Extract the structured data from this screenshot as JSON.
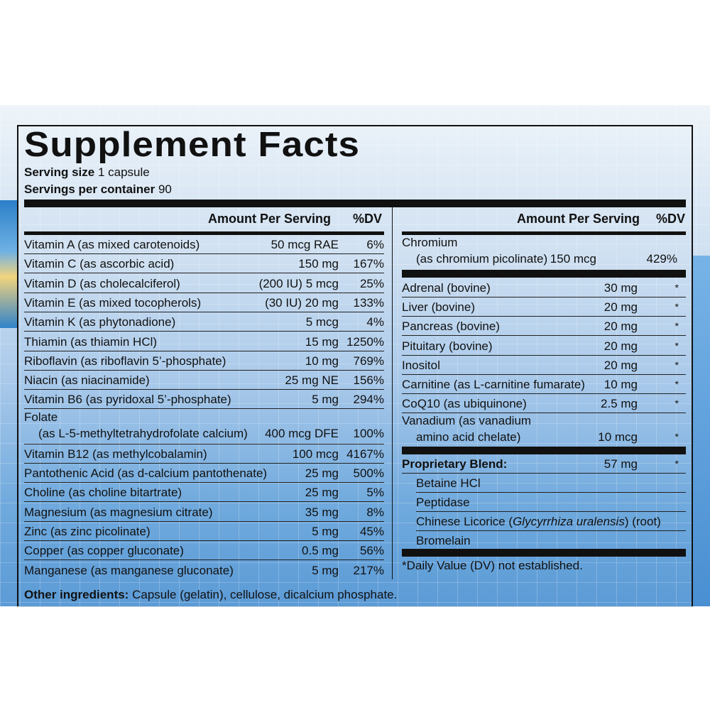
{
  "title": "Supplement Facts",
  "serving_size_label": "Serving size",
  "serving_size_value": "1 capsule",
  "servings_label": "Servings per container",
  "servings_value": "90",
  "left_header": {
    "amount": "Amount Per Serving",
    "dv": "%DV"
  },
  "right_header": {
    "amount": "Amount Per Serving",
    "dv": "%DV"
  },
  "left_rows": [
    {
      "name": "Vitamin A (as mixed carotenoids)",
      "amount": "50 mcg RAE",
      "dv": "6%"
    },
    {
      "name": "Vitamin C (as ascorbic acid)",
      "amount": "150 mg",
      "dv": "167%"
    },
    {
      "name": "Vitamin D (as cholecalciferol)",
      "amount": "(200 IU) 5 mcg",
      "dv": "25%"
    },
    {
      "name": "Vitamin E (as mixed tocopherols)",
      "amount": "(30 IU) 20 mg",
      "dv": "133%"
    },
    {
      "name": "Vitamin K (as phytonadione)",
      "amount": "5 mcg",
      "dv": "4%"
    },
    {
      "name": "Thiamin (as thiamin HCl)",
      "amount": "15 mg",
      "dv": "1250%"
    },
    {
      "name": "Riboflavin (as riboflavin 5’-phosphate)",
      "amount": "10 mg",
      "dv": "769%"
    },
    {
      "name": "Niacin (as niacinamide)",
      "amount": "25 mg NE",
      "dv": "156%"
    },
    {
      "name": "Vitamin B6 (as pyridoxal 5’-phosphate)",
      "amount": "5 mg",
      "dv": "294%"
    }
  ],
  "folate": {
    "name": "Folate",
    "sub": "(as L-5-methyltetrahydrofolate calcium)",
    "amount": "400 mcg DFE",
    "dv": "100%"
  },
  "left_rows2": [
    {
      "name": "Vitamin B12 (as methylcobalamin)",
      "amount": "100 mcg",
      "dv": "4167%"
    },
    {
      "name": "Pantothenic Acid (as d-calcium pantothenate)",
      "amount": "25 mg",
      "dv": "500%"
    },
    {
      "name": "Choline (as choline bitartrate)",
      "amount": "25 mg",
      "dv": "5%"
    },
    {
      "name": "Magnesium (as magnesium citrate)",
      "amount": "35 mg",
      "dv": "8%"
    },
    {
      "name": "Zinc (as zinc picolinate)",
      "amount": "5 mg",
      "dv": "45%"
    },
    {
      "name": "Copper (as copper gluconate)",
      "amount": "0.5 mg",
      "dv": "56%"
    },
    {
      "name": "Manganese (as manganese gluconate)",
      "amount": "5 mg",
      "dv": "217%"
    }
  ],
  "chromium": {
    "name": "Chromium",
    "sub": "(as chromium picolinate)",
    "amount": "150 mcg",
    "dv": "429%"
  },
  "right_rows": [
    {
      "name": "Adrenal (bovine)",
      "amount": "30 mg",
      "dv": "*"
    },
    {
      "name": "Liver (bovine)",
      "amount": "20 mg",
      "dv": "*"
    },
    {
      "name": "Pancreas (bovine)",
      "amount": "20 mg",
      "dv": "*"
    },
    {
      "name": "Pituitary (bovine)",
      "amount": "20 mg",
      "dv": "*"
    },
    {
      "name": "Inositol",
      "amount": "20 mg",
      "dv": "*"
    },
    {
      "name": "Carnitine (as L-carnitine fumarate)",
      "amount": "10 mg",
      "dv": "*"
    },
    {
      "name": "CoQ10 (as ubiquinone)",
      "amount": "2.5 mg",
      "dv": "*"
    }
  ],
  "vanadium": {
    "name": "Vanadium (as vanadium",
    "sub": "amino acid chelate)",
    "amount": "10 mcg",
    "dv": "*"
  },
  "blend": {
    "name": "Proprietary Blend:",
    "amount": "57 mg",
    "dv": "*"
  },
  "blend_items": [
    "Betaine HCl",
    "Peptidase",
    "Bromelain"
  ],
  "licorice": {
    "pre": "Chinese Licorice (",
    "italic": "Glycyrrhiza uralensis",
    "post": ") (root)"
  },
  "footnote": "*Daily Value (DV) not established.",
  "other_label": "Other ingredients:",
  "other_value": "Capsule (gelatin), cellulose, dicalcium phosphate."
}
